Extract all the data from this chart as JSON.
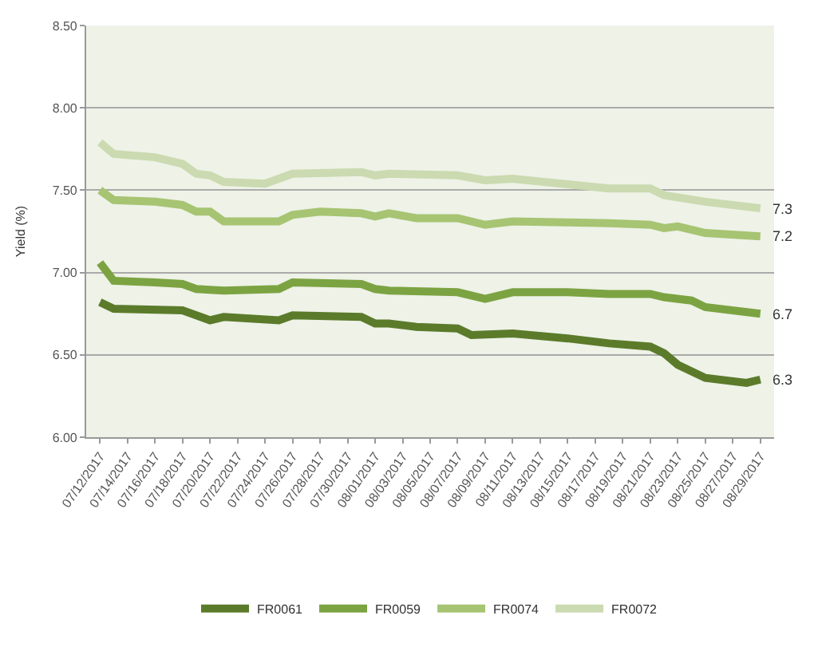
{
  "chart_data": {
    "type": "line",
    "ylabel": "Yield (%)",
    "series": [
      {
        "name": "FR0061",
        "color": "#5b7b2b",
        "x": [
          "2017-07-12",
          "2017-07-13",
          "2017-07-18",
          "2017-07-20",
          "2017-07-21",
          "2017-07-25",
          "2017-07-26",
          "2017-07-31",
          "2017-08-01",
          "2017-08-02",
          "2017-08-04",
          "2017-08-07",
          "2017-08-08",
          "2017-08-11",
          "2017-08-15",
          "2017-08-18",
          "2017-08-21",
          "2017-08-22",
          "2017-08-23",
          "2017-08-25",
          "2017-08-28",
          "2017-08-29"
        ],
        "values": [
          6.82,
          6.78,
          6.77,
          6.71,
          6.73,
          6.71,
          6.74,
          6.73,
          6.69,
          6.69,
          6.67,
          6.66,
          6.62,
          6.63,
          6.6,
          6.57,
          6.55,
          6.51,
          6.44,
          6.36,
          6.33,
          6.35
        ]
      },
      {
        "name": "FR0059",
        "color": "#7ca342",
        "x": [
          "2017-07-12",
          "2017-07-13",
          "2017-07-16",
          "2017-07-18",
          "2017-07-19",
          "2017-07-21",
          "2017-07-25",
          "2017-07-26",
          "2017-07-31",
          "2017-08-01",
          "2017-08-02",
          "2017-08-07",
          "2017-08-09",
          "2017-08-11",
          "2017-08-15",
          "2017-08-18",
          "2017-08-21",
          "2017-08-22",
          "2017-08-24",
          "2017-08-25",
          "2017-08-29"
        ],
        "values": [
          7.06,
          6.95,
          6.94,
          6.93,
          6.9,
          6.89,
          6.9,
          6.94,
          6.93,
          6.9,
          6.89,
          6.88,
          6.84,
          6.88,
          6.88,
          6.87,
          6.87,
          6.85,
          6.83,
          6.79,
          6.75
        ]
      },
      {
        "name": "FR0074",
        "color": "#a6c472",
        "x": [
          "2017-07-12",
          "2017-07-13",
          "2017-07-16",
          "2017-07-18",
          "2017-07-19",
          "2017-07-20",
          "2017-07-21",
          "2017-07-25",
          "2017-07-26",
          "2017-07-28",
          "2017-07-31",
          "2017-08-01",
          "2017-08-02",
          "2017-08-04",
          "2017-08-07",
          "2017-08-09",
          "2017-08-11",
          "2017-08-18",
          "2017-08-21",
          "2017-08-22",
          "2017-08-23",
          "2017-08-25",
          "2017-08-29"
        ],
        "values": [
          7.5,
          7.44,
          7.43,
          7.41,
          7.37,
          7.37,
          7.31,
          7.31,
          7.35,
          7.37,
          7.36,
          7.34,
          7.36,
          7.33,
          7.33,
          7.29,
          7.31,
          7.3,
          7.29,
          7.27,
          7.28,
          7.24,
          7.22
        ]
      },
      {
        "name": "FR0072",
        "color": "#cbdab0",
        "x": [
          "2017-07-12",
          "2017-07-13",
          "2017-07-16",
          "2017-07-18",
          "2017-07-19",
          "2017-07-20",
          "2017-07-21",
          "2017-07-24",
          "2017-07-26",
          "2017-07-31",
          "2017-08-01",
          "2017-08-02",
          "2017-08-07",
          "2017-08-09",
          "2017-08-11",
          "2017-08-18",
          "2017-08-21",
          "2017-08-22",
          "2017-08-25",
          "2017-08-29"
        ],
        "values": [
          7.79,
          7.72,
          7.7,
          7.66,
          7.6,
          7.59,
          7.55,
          7.54,
          7.6,
          7.61,
          7.59,
          7.6,
          7.59,
          7.56,
          7.57,
          7.51,
          7.51,
          7.47,
          7.43,
          7.39
        ]
      }
    ],
    "xlim": [
      "2017-07-11",
      "2017-08-30"
    ],
    "xticks": [
      {
        "value": "2017-07-12",
        "label": "07/12/2017"
      },
      {
        "value": "2017-07-14",
        "label": "07/14/2017"
      },
      {
        "value": "2017-07-16",
        "label": "07/16/2017"
      },
      {
        "value": "2017-07-18",
        "label": "07/18/2017"
      },
      {
        "value": "2017-07-20",
        "label": "07/20/2017"
      },
      {
        "value": "2017-07-22",
        "label": "07/22/2017"
      },
      {
        "value": "2017-07-24",
        "label": "07/24/2017"
      },
      {
        "value": "2017-07-26",
        "label": "07/26/2017"
      },
      {
        "value": "2017-07-28",
        "label": "07/28/2017"
      },
      {
        "value": "2017-07-30",
        "label": "07/30/2017"
      },
      {
        "value": "2017-08-01",
        "label": "08/01/2017"
      },
      {
        "value": "2017-08-03",
        "label": "08/03/2017"
      },
      {
        "value": "2017-08-05",
        "label": "08/05/2017"
      },
      {
        "value": "2017-08-07",
        "label": "08/07/2017"
      },
      {
        "value": "2017-08-09",
        "label": "08/09/2017"
      },
      {
        "value": "2017-08-11",
        "label": "08/11/2017"
      },
      {
        "value": "2017-08-13",
        "label": "08/13/2017"
      },
      {
        "value": "2017-08-15",
        "label": "08/15/2017"
      },
      {
        "value": "2017-08-17",
        "label": "08/17/2017"
      },
      {
        "value": "2017-08-19",
        "label": "08/19/2017"
      },
      {
        "value": "2017-08-21",
        "label": "08/21/2017"
      },
      {
        "value": "2017-08-23",
        "label": "08/23/2017"
      },
      {
        "value": "2017-08-25",
        "label": "08/25/2017"
      },
      {
        "value": "2017-08-27",
        "label": "08/27/2017"
      },
      {
        "value": "2017-08-29",
        "label": "08/29/2017"
      }
    ],
    "ylim": [
      6.0,
      8.5
    ],
    "yticks": [
      {
        "value": 6.0,
        "label": "6.00"
      },
      {
        "value": 6.5,
        "label": "6.50"
      },
      {
        "value": 7.0,
        "label": "7.00"
      },
      {
        "value": 7.5,
        "label": "7.50"
      },
      {
        "value": 8.0,
        "label": "8.00"
      },
      {
        "value": 8.5,
        "label": "8.50"
      }
    ],
    "annotations": [
      {
        "text": "7.3",
        "x": "2017-08-29",
        "y": 7.39
      },
      {
        "text": "7.2",
        "x": "2017-08-29",
        "y": 7.22
      },
      {
        "text": "6.7",
        "x": "2017-08-29",
        "y": 6.75
      },
      {
        "text": "6.3",
        "x": "2017-08-29",
        "y": 6.35
      }
    ],
    "grid": "y",
    "legend": "bottom",
    "marker": "none",
    "line_style": "solid"
  }
}
